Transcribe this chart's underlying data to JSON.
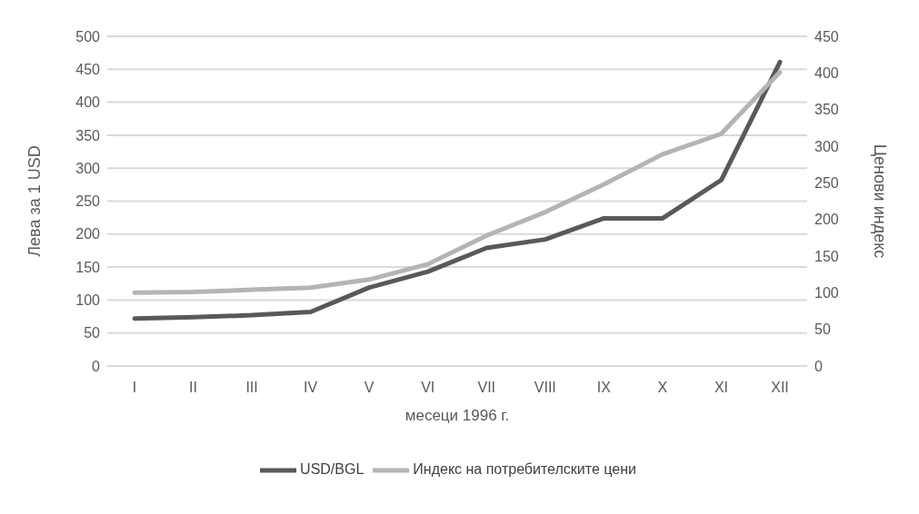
{
  "chart_data": {
    "type": "line",
    "xlabel": "месеци 1996 г.",
    "ylabel": "Лева за 1 USD",
    "y2label": "Ценови индекс",
    "categories": [
      "I",
      "II",
      "III",
      "IV",
      "V",
      "VI",
      "VII",
      "VIII",
      "IX",
      "X",
      "XI",
      "XII"
    ],
    "series": [
      {
        "name": "USD/BGL",
        "color": "#595959",
        "values": [
          72,
          74,
          77,
          82,
          119,
          143,
          179,
          192,
          224,
          224,
          282,
          461
        ]
      },
      {
        "name": "Индекс на потребителските цени",
        "color": "#b4b4b4",
        "axis": "y2",
        "values": [
          100,
          101,
          104,
          107,
          118,
          139,
          178,
          210,
          248,
          289,
          317,
          401
        ]
      }
    ],
    "ylim": [
      0,
      500
    ],
    "yticks": [
      0,
      50,
      100,
      150,
      200,
      250,
      300,
      350,
      400,
      450,
      500
    ],
    "y2lim": [
      0,
      450
    ],
    "y2ticks": [
      0,
      50,
      100,
      150,
      200,
      250,
      300,
      350,
      400,
      450
    ],
    "grid": "y",
    "legend": "bottom",
    "marker": "none",
    "line_style": "solid"
  }
}
